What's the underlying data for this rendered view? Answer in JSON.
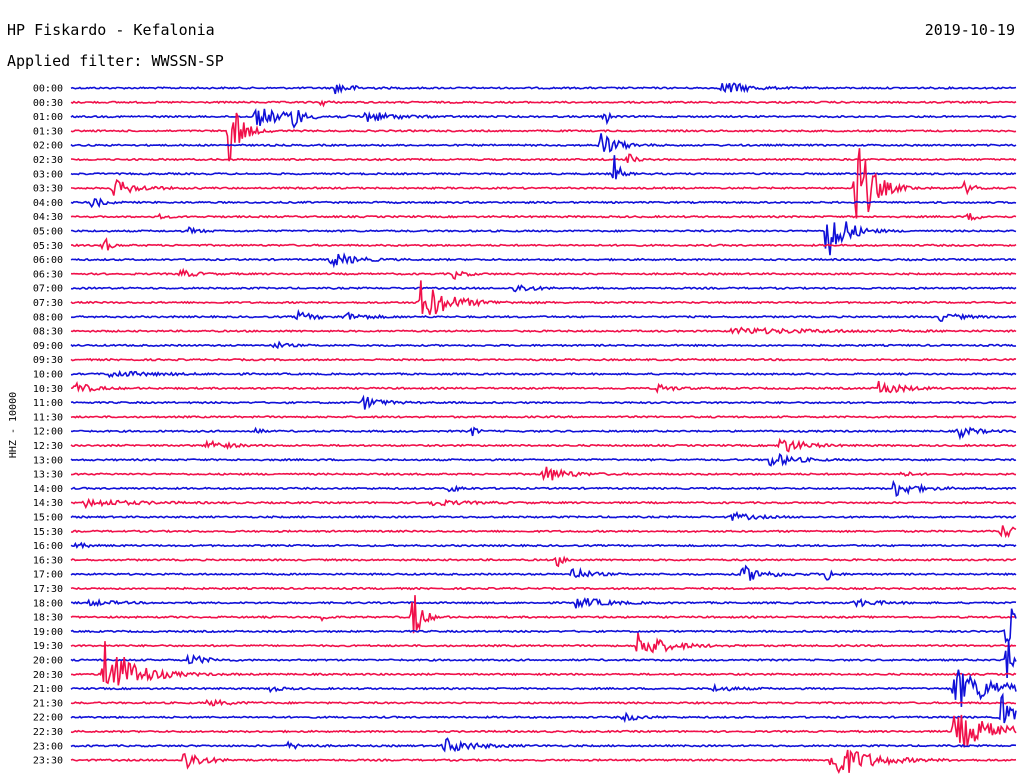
{
  "header": {
    "station": "HP Fiskardo - Kefalonia",
    "date": "2019-10-19",
    "filter": "Applied filter: WWSSN-SP"
  },
  "chart_data": {
    "type": "line",
    "title": "HP Fiskardo - Kefalonia",
    "ylabel": "HHZ - 10000",
    "rows": [
      "00:00",
      "00:30",
      "01:00",
      "01:30",
      "02:00",
      "02:30",
      "03:00",
      "03:30",
      "04:00",
      "04:30",
      "05:00",
      "05:30",
      "06:00",
      "06:30",
      "07:00",
      "07:30",
      "08:00",
      "08:30",
      "09:00",
      "09:30",
      "10:00",
      "10:30",
      "11:00",
      "11:30",
      "12:00",
      "12:30",
      "13:00",
      "13:30",
      "14:00",
      "14:30",
      "15:00",
      "15:30",
      "16:00",
      "16:30",
      "17:00",
      "17:30",
      "18:00",
      "18:30",
      "19:00",
      "19:30",
      "20:00",
      "20:30",
      "21:00",
      "21:30",
      "22:00",
      "22:30",
      "23:00",
      "23:30"
    ],
    "series_colors": [
      "#1010d8",
      "#f0104a"
    ],
    "x_range_minutes": [
      0,
      30
    ],
    "events": [
      {
        "row": 0,
        "x": 0.28,
        "amp": 6,
        "dur": 0.015
      },
      {
        "row": 0,
        "x": 0.69,
        "amp": 8,
        "dur": 0.02
      },
      {
        "row": 1,
        "x": 0.265,
        "amp": 4,
        "dur": 0.005
      },
      {
        "row": 2,
        "x": 0.195,
        "amp": 10,
        "dur": 0.03
      },
      {
        "row": 2,
        "x": 0.235,
        "amp": 16,
        "dur": 0.005
      },
      {
        "row": 2,
        "x": 0.31,
        "amp": 6,
        "dur": 0.025
      },
      {
        "row": 2,
        "x": 0.565,
        "amp": 10,
        "dur": 0.004
      },
      {
        "row": 3,
        "x": 0.168,
        "amp": 42,
        "dur": 0.01
      },
      {
        "row": 4,
        "x": 0.56,
        "amp": 14,
        "dur": 0.015
      },
      {
        "row": 5,
        "x": 0.59,
        "amp": 8,
        "dur": 0.005
      },
      {
        "row": 6,
        "x": 0.575,
        "amp": 18,
        "dur": 0.005
      },
      {
        "row": 7,
        "x": 0.045,
        "amp": 9,
        "dur": 0.02
      },
      {
        "row": 7,
        "x": 0.83,
        "amp": 58,
        "dur": 0.015
      },
      {
        "row": 7,
        "x": 0.945,
        "amp": 6,
        "dur": 0.01
      },
      {
        "row": 8,
        "x": 0.022,
        "amp": 6,
        "dur": 0.01
      },
      {
        "row": 9,
        "x": 0.095,
        "amp": 3,
        "dur": 0.005
      },
      {
        "row": 9,
        "x": 0.95,
        "amp": 4,
        "dur": 0.01
      },
      {
        "row": 10,
        "x": 0.8,
        "amp": 38,
        "dur": 0.015
      },
      {
        "row": 10,
        "x": 0.125,
        "amp": 3,
        "dur": 0.01
      },
      {
        "row": 11,
        "x": 0.035,
        "amp": 10,
        "dur": 0.005
      },
      {
        "row": 12,
        "x": 0.275,
        "amp": 8,
        "dur": 0.02
      },
      {
        "row": 13,
        "x": 0.115,
        "amp": 4,
        "dur": 0.015
      },
      {
        "row": 13,
        "x": 0.405,
        "amp": 5,
        "dur": 0.01
      },
      {
        "row": 14,
        "x": 0.47,
        "amp": 5,
        "dur": 0.015
      },
      {
        "row": 15,
        "x": 0.37,
        "amp": 22,
        "dur": 0.025
      },
      {
        "row": 16,
        "x": 0.24,
        "amp": 5,
        "dur": 0.015
      },
      {
        "row": 16,
        "x": 0.29,
        "amp": 4,
        "dur": 0.02
      },
      {
        "row": 16,
        "x": 0.92,
        "amp": 4,
        "dur": 0.02
      },
      {
        "row": 17,
        "x": 0.7,
        "amp": 3,
        "dur": 0.08
      },
      {
        "row": 18,
        "x": 0.215,
        "amp": 4,
        "dur": 0.01
      },
      {
        "row": 20,
        "x": 0.04,
        "amp": 3,
        "dur": 0.04
      },
      {
        "row": 21,
        "x": 0.005,
        "amp": 6,
        "dur": 0.015
      },
      {
        "row": 21,
        "x": 0.62,
        "amp": 4,
        "dur": 0.015
      },
      {
        "row": 21,
        "x": 0.855,
        "amp": 8,
        "dur": 0.02
      },
      {
        "row": 22,
        "x": 0.31,
        "amp": 7,
        "dur": 0.015
      },
      {
        "row": 24,
        "x": 0.195,
        "amp": 6,
        "dur": 0.004
      },
      {
        "row": 24,
        "x": 0.425,
        "amp": 6,
        "dur": 0.004
      },
      {
        "row": 24,
        "x": 0.94,
        "amp": 6,
        "dur": 0.015
      },
      {
        "row": 25,
        "x": 0.145,
        "amp": 7,
        "dur": 0.015
      },
      {
        "row": 25,
        "x": 0.75,
        "amp": 9,
        "dur": 0.02
      },
      {
        "row": 26,
        "x": 0.74,
        "amp": 8,
        "dur": 0.02
      },
      {
        "row": 27,
        "x": 0.5,
        "amp": 9,
        "dur": 0.02
      },
      {
        "row": 27,
        "x": 0.875,
        "amp": 4,
        "dur": 0.01
      },
      {
        "row": 28,
        "x": 0.87,
        "amp": 9,
        "dur": 0.02
      },
      {
        "row": 28,
        "x": 0.4,
        "amp": 4,
        "dur": 0.01
      },
      {
        "row": 29,
        "x": 0.015,
        "amp": 4,
        "dur": 0.04
      },
      {
        "row": 29,
        "x": 0.38,
        "amp": 3,
        "dur": 0.03
      },
      {
        "row": 30,
        "x": 0.7,
        "amp": 4,
        "dur": 0.02
      },
      {
        "row": 31,
        "x": 0.985,
        "amp": 7,
        "dur": 0.02
      },
      {
        "row": 32,
        "x": 0.005,
        "amp": 3,
        "dur": 0.01
      },
      {
        "row": 33,
        "x": 0.515,
        "amp": 7,
        "dur": 0.005
      },
      {
        "row": 34,
        "x": 0.53,
        "amp": 7,
        "dur": 0.015
      },
      {
        "row": 34,
        "x": 0.71,
        "amp": 9,
        "dur": 0.02
      },
      {
        "row": 34,
        "x": 0.8,
        "amp": 9,
        "dur": 0.005
      },
      {
        "row": 36,
        "x": 0.535,
        "amp": 6,
        "dur": 0.025
      },
      {
        "row": 36,
        "x": 0.83,
        "amp": 4,
        "dur": 0.02
      },
      {
        "row": 36,
        "x": 0.02,
        "amp": 3,
        "dur": 0.02
      },
      {
        "row": 37,
        "x": 0.362,
        "amp": 30,
        "dur": 0.008
      },
      {
        "row": 37,
        "x": 0.265,
        "amp": 5,
        "dur": 0.004
      },
      {
        "row": 38,
        "x": 0.99,
        "amp": 35,
        "dur": 0.015
      },
      {
        "row": 39,
        "x": 0.6,
        "amp": 14,
        "dur": 0.025
      },
      {
        "row": 40,
        "x": 0.99,
        "amp": 22,
        "dur": 0.03
      },
      {
        "row": 40,
        "x": 0.125,
        "amp": 6,
        "dur": 0.015
      },
      {
        "row": 41,
        "x": 0.035,
        "amp": 40,
        "dur": 0.025
      },
      {
        "row": 42,
        "x": 0.935,
        "amp": 22,
        "dur": 0.035
      },
      {
        "row": 42,
        "x": 0.68,
        "amp": 3,
        "dur": 0.02
      },
      {
        "row": 42,
        "x": 0.21,
        "amp": 3,
        "dur": 0.01
      },
      {
        "row": 43,
        "x": 0.145,
        "amp": 3,
        "dur": 0.02
      },
      {
        "row": 44,
        "x": 0.985,
        "amp": 30,
        "dur": 0.01
      },
      {
        "row": 44,
        "x": 0.585,
        "amp": 4,
        "dur": 0.015
      },
      {
        "row": 45,
        "x": 0.935,
        "amp": 20,
        "dur": 0.04
      },
      {
        "row": 46,
        "x": 0.395,
        "amp": 8,
        "dur": 0.025
      },
      {
        "row": 46,
        "x": 0.23,
        "amp": 3,
        "dur": 0.015
      },
      {
        "row": 47,
        "x": 0.12,
        "amp": 12,
        "dur": 0.015
      },
      {
        "row": 47,
        "x": 0.805,
        "amp": 22,
        "dur": 0.03
      }
    ]
  }
}
